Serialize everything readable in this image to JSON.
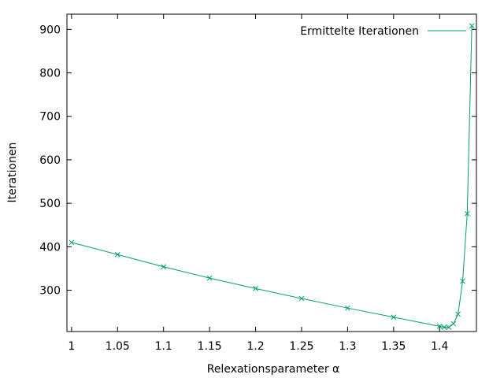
{
  "chart_data": {
    "type": "line",
    "xlabel": "Relexationsparameter α",
    "ylabel": "Iterationen",
    "xlim": [
      0.995,
      1.44
    ],
    "ylim": [
      205,
      935
    ],
    "xticks": [
      1,
      1.05,
      1.1,
      1.15,
      1.2,
      1.25,
      1.3,
      1.35,
      1.4
    ],
    "xtick_labels": [
      "1",
      "1.05",
      "1.1",
      "1.15",
      "1.2",
      "1.25",
      "1.3",
      "1.35",
      "1.4"
    ],
    "yticks": [
      300,
      400,
      500,
      600,
      700,
      800,
      900
    ],
    "ytick_labels": [
      "300",
      "400",
      "500",
      "600",
      "700",
      "800",
      "900"
    ],
    "grid": false,
    "legend_position": "top-right",
    "series": [
      {
        "name": "Ermittelte Iterationen",
        "color": "#009e73",
        "marker": "x",
        "x": [
          1.0,
          1.05,
          1.1,
          1.15,
          1.2,
          1.25,
          1.3,
          1.35,
          1.4,
          1.405,
          1.41,
          1.415,
          1.42,
          1.425,
          1.43,
          1.435
        ],
        "y": [
          410,
          382,
          354,
          328,
          304,
          281,
          259,
          238,
          217,
          215,
          215,
          223,
          245,
          321,
          476,
          908
        ]
      }
    ]
  }
}
